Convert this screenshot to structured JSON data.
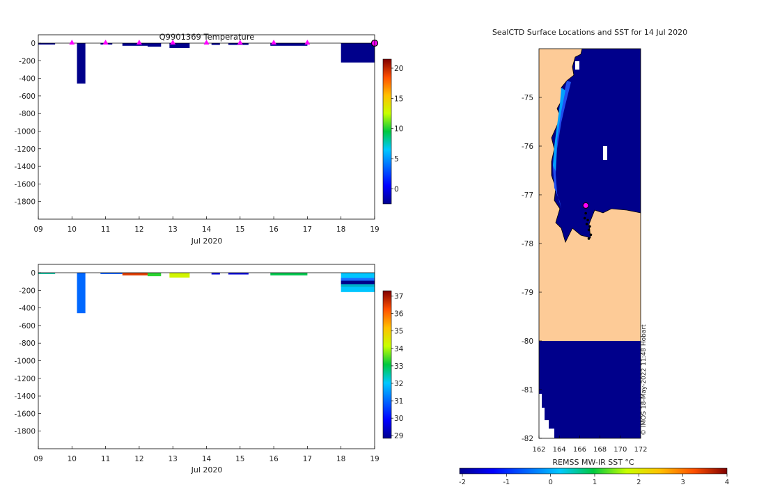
{
  "colors": {
    "profile_dark": "#00008b",
    "land": "#fdcb97",
    "marker": "#ff00ff",
    "axis": "#000000"
  },
  "chart_data": [
    {
      "type": "bar",
      "title": "Q9901369  Temperature",
      "xlabel": "Jul 2020",
      "x_ticks": [
        "09",
        "10",
        "11",
        "12",
        "13",
        "14",
        "15",
        "16",
        "17",
        "18",
        "19"
      ],
      "y_ticks": [
        "0",
        "-200",
        "-400",
        "-600",
        "-800",
        "-1000",
        "-1200",
        "-1400",
        "-1600",
        "-1800"
      ],
      "xlim": [
        9,
        19
      ],
      "ylim": [
        -2000,
        0
      ],
      "colorbar": {
        "ticks": [
          "20",
          "15",
          "10",
          "5",
          "0"
        ],
        "range": [
          -2.5,
          21.5
        ]
      },
      "profiles": [
        {
          "start": 9.0,
          "end": 9.5,
          "depth": 7
        },
        {
          "start": 10.15,
          "end": 10.4,
          "depth": 460
        },
        {
          "start": 10.85,
          "end": 11.2,
          "depth": 10
        },
        {
          "start": 11.5,
          "end": 12.25,
          "depth": 30
        },
        {
          "start": 12.25,
          "end": 12.65,
          "depth": 40
        },
        {
          "start": 12.9,
          "end": 13.5,
          "depth": 55
        },
        {
          "start": 14.15,
          "end": 14.4,
          "depth": 20
        },
        {
          "start": 14.65,
          "end": 15.25,
          "depth": 20
        },
        {
          "start": 15.9,
          "end": 17.0,
          "depth": 30
        },
        {
          "start": 18.0,
          "end": 19.05,
          "depth": 220
        }
      ],
      "surfacing_markers": [
        10,
        11,
        12,
        13,
        14,
        15,
        16,
        17
      ],
      "last_position_marker": 19.0
    },
    {
      "type": "bar",
      "title": "",
      "xlabel": "Jul 2020",
      "x_ticks": [
        "09",
        "10",
        "11",
        "12",
        "13",
        "14",
        "15",
        "16",
        "17",
        "18",
        "19"
      ],
      "y_ticks": [
        "0",
        "-200",
        "-400",
        "-600",
        "-800",
        "-1000",
        "-1200",
        "-1400",
        "-1600",
        "-1800"
      ],
      "xlim": [
        9,
        19
      ],
      "ylim": [
        -2000,
        0
      ],
      "colorbar": {
        "ticks": [
          "37",
          "36",
          "35",
          "34",
          "33",
          "32",
          "31",
          "30",
          "29"
        ],
        "range": [
          28.85,
          37.3
        ]
      },
      "profiles": [
        {
          "start": 9.0,
          "end": 9.5,
          "depth": 8,
          "value": 32.5
        },
        {
          "start": 10.15,
          "end": 10.4,
          "depth": 460,
          "value": 31.0
        },
        {
          "start": 10.85,
          "end": 11.5,
          "depth": 10,
          "value": 31.0
        },
        {
          "start": 11.5,
          "end": 12.25,
          "depth": 30,
          "value": 36.5
        },
        {
          "start": 12.25,
          "end": 12.65,
          "depth": 40,
          "value": 33.3
        },
        {
          "start": 12.9,
          "end": 13.5,
          "depth": 55,
          "value": 34.3
        },
        {
          "start": 14.15,
          "end": 14.4,
          "depth": 20,
          "value": 29.6
        },
        {
          "start": 14.65,
          "end": 15.25,
          "depth": 20,
          "value": 29.6
        },
        {
          "start": 15.9,
          "end": 17.0,
          "depth": 30,
          "value": 33.0
        },
        {
          "start": 18.0,
          "end": 19.05,
          "depth": 220,
          "value": 32.0
        }
      ]
    },
    {
      "type": "heatmap",
      "title": "SealCTD Surface Locations and SST for 14 Jul 2020",
      "x_ticks": [
        "162",
        "164",
        "166",
        "168",
        "170",
        "172"
      ],
      "y_ticks": [
        "-75",
        "-76",
        "-77",
        "-78",
        "-79",
        "-80",
        "-81",
        "-82"
      ],
      "xlim": [
        162,
        172
      ],
      "ylim": [
        -82,
        -74
      ],
      "colorbar_label": "REMSS MW-IR SST °C",
      "colorbar_ticks": [
        "-2",
        "-1",
        "0",
        "1",
        "2",
        "3",
        "4"
      ],
      "colorbar_range": [
        -2,
        4
      ],
      "track": [
        [
          166.6,
          -77.38
        ],
        [
          166.8,
          -77.52
        ],
        [
          167.0,
          -77.65
        ],
        [
          166.9,
          -77.72
        ],
        [
          166.7,
          -77.6
        ],
        [
          166.5,
          -77.48
        ],
        [
          167.1,
          -77.82
        ],
        [
          166.9,
          -77.9
        ]
      ],
      "current_position": [
        166.6,
        -77.22
      ],
      "credit": "© IMOS 18-May-2022 11:48 Hobart"
    }
  ]
}
